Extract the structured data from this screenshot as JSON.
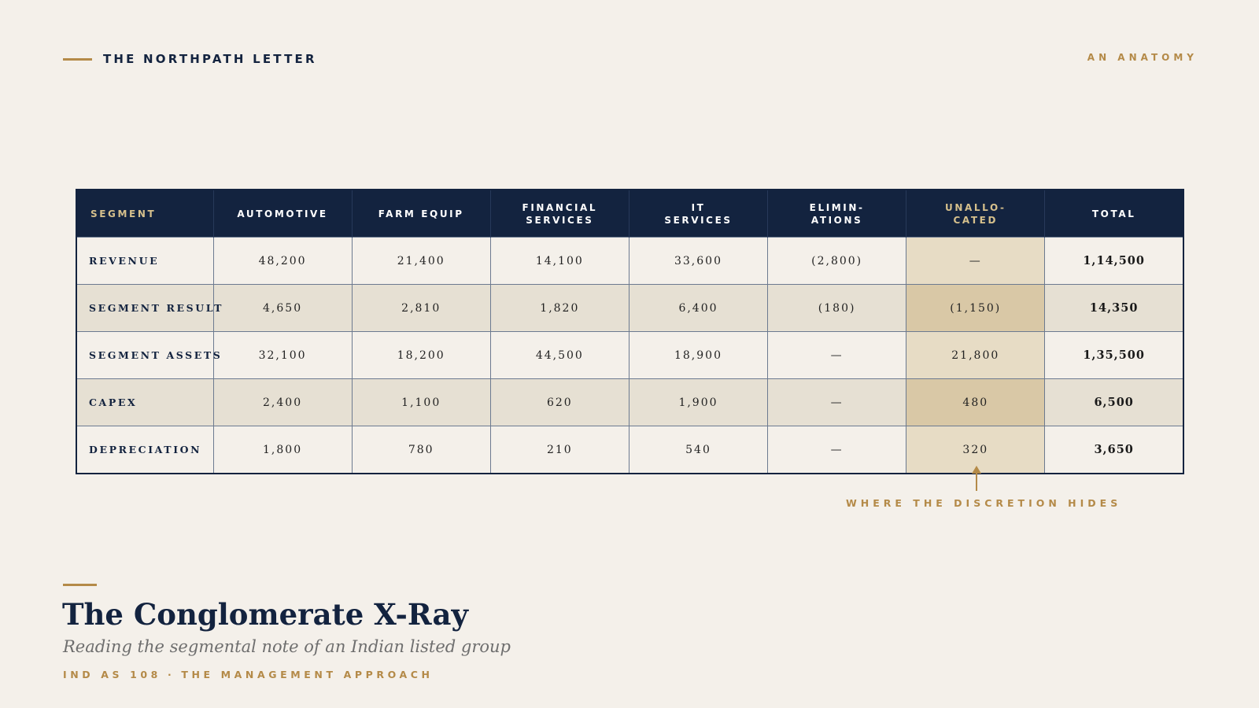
{
  "masthead": {
    "title": "THE NORTHPATH LETTER",
    "kicker": "AN ANATOMY"
  },
  "table": {
    "headers": [
      {
        "label": "SEGMENT",
        "accent": true
      },
      {
        "label": "AUTOMOTIVE",
        "accent": false
      },
      {
        "label": "FARM EQUIP",
        "accent": false
      },
      {
        "label": "FINANCIAL\nSERVICES",
        "accent": false
      },
      {
        "label": "IT\nSERVICES",
        "accent": false
      },
      {
        "label": "ELIMIN-\nATIONS",
        "accent": false
      },
      {
        "label": "UNALLO-\nCATED",
        "accent": true
      },
      {
        "label": "TOTAL",
        "accent": false
      }
    ],
    "rows": [
      {
        "label": "REVENUE",
        "cells": [
          "48,200",
          "21,400",
          "14,100",
          "33,600",
          "(2,800)",
          "—",
          "1,14,500"
        ]
      },
      {
        "label": "SEGMENT RESULT",
        "cells": [
          "4,650",
          "2,810",
          "1,820",
          "6,400",
          "(180)",
          "(1,150)",
          "14,350"
        ]
      },
      {
        "label": "SEGMENT ASSETS",
        "cells": [
          "32,100",
          "18,200",
          "44,500",
          "18,900",
          "—",
          "21,800",
          "1,35,500"
        ]
      },
      {
        "label": "CAPEX",
        "cells": [
          "2,400",
          "1,100",
          "620",
          "1,900",
          "—",
          "480",
          "6,500"
        ]
      },
      {
        "label": "DEPRECIATION",
        "cells": [
          "1,800",
          "780",
          "210",
          "540",
          "—",
          "320",
          "3,650"
        ]
      }
    ]
  },
  "annotation": {
    "text": "WHERE THE DISCRETION HIDES"
  },
  "footer": {
    "title": "The Conglomerate X-Ray",
    "subtitle": "Reading the segmental note of an Indian listed group",
    "kicker_left": "IND AS 108",
    "kicker_sep": "·",
    "kicker_right": "THE MANAGEMENT APPROACH"
  },
  "colors": {
    "navy": "#13233f",
    "gold": "#b48a48",
    "paper": "#f4f0ea",
    "highlight": "#e7dcc5"
  }
}
